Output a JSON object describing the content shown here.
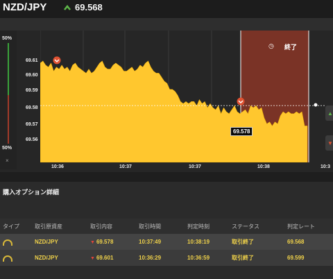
{
  "header": {
    "pair": "NZD/JPY",
    "price": "69.568",
    "arrow": "up",
    "arrow_color": "#5fb84a"
  },
  "chart": {
    "left_pct_top": "50%",
    "left_pct_bottom": "50%",
    "close_symbol": "×",
    "y_ticks": [
      "69.61",
      "69.60",
      "69.59",
      "69.58",
      "69.57",
      "69.56"
    ],
    "x_ticks": [
      "10:36",
      "10:37",
      "10:37",
      "10:38",
      "10:3"
    ],
    "end_label": "終了",
    "current_price_tag": "69.578",
    "colors": {
      "area": "#ffc72e",
      "expiry_zone": "#7a3326",
      "bg": "#262626",
      "marker": "#e05232"
    }
  },
  "chart_data": {
    "type": "area",
    "series": [
      {
        "values": [
          69.599,
          69.6,
          69.598,
          69.597,
          69.599,
          69.595,
          69.597,
          69.596,
          69.598,
          69.596,
          69.597,
          69.595,
          69.598,
          69.599,
          69.597,
          69.596,
          69.595,
          69.594,
          69.596,
          69.594,
          69.595,
          69.597,
          69.599,
          69.6,
          69.597,
          69.596,
          69.596,
          69.598,
          69.599,
          69.598,
          69.597,
          69.595,
          69.595,
          69.596,
          69.597,
          69.595,
          69.596,
          69.598,
          69.597,
          69.599,
          69.6,
          69.597,
          69.595,
          69.594,
          69.594,
          69.592,
          69.59,
          69.589,
          69.586,
          69.586,
          69.585,
          69.583,
          69.58,
          69.579,
          69.58,
          69.579,
          69.58,
          69.58,
          69.578,
          69.581,
          69.579,
          69.58,
          69.577,
          69.579,
          69.577,
          69.576,
          69.578,
          69.574,
          69.577,
          69.575,
          69.574,
          69.576,
          69.578,
          69.575,
          69.574,
          69.575,
          69.576,
          69.574,
          69.578,
          69.577,
          69.578,
          69.576,
          69.577,
          69.572,
          69.569,
          69.57,
          69.568,
          69.57,
          69.569,
          69.573,
          69.575,
          69.574,
          69.575,
          69.574,
          69.574,
          69.575,
          69.574,
          69.575,
          69.568,
          69.568
        ]
      }
    ],
    "ylim": [
      69.55,
      69.615
    ],
    "entry_price": 69.578,
    "markers": [
      69.601,
      69.578
    ]
  },
  "section_title": "購入オプション詳細",
  "table": {
    "headers": [
      "タイプ",
      "取引原資産",
      "取引内容",
      "取引時間",
      "判定時刻",
      "ステータス",
      "判定レート"
    ],
    "rows": [
      {
        "asset": "NZD/JPY",
        "content": "69.578",
        "trade_time": "10:37:49",
        "judge_time": "10:38:19",
        "status": "取引終了",
        "rate": "69.568"
      },
      {
        "asset": "NZD/JPY",
        "content": "69.601",
        "trade_time": "10:36:29",
        "judge_time": "10:36:59",
        "status": "取引終了",
        "rate": "69.599"
      }
    ]
  }
}
